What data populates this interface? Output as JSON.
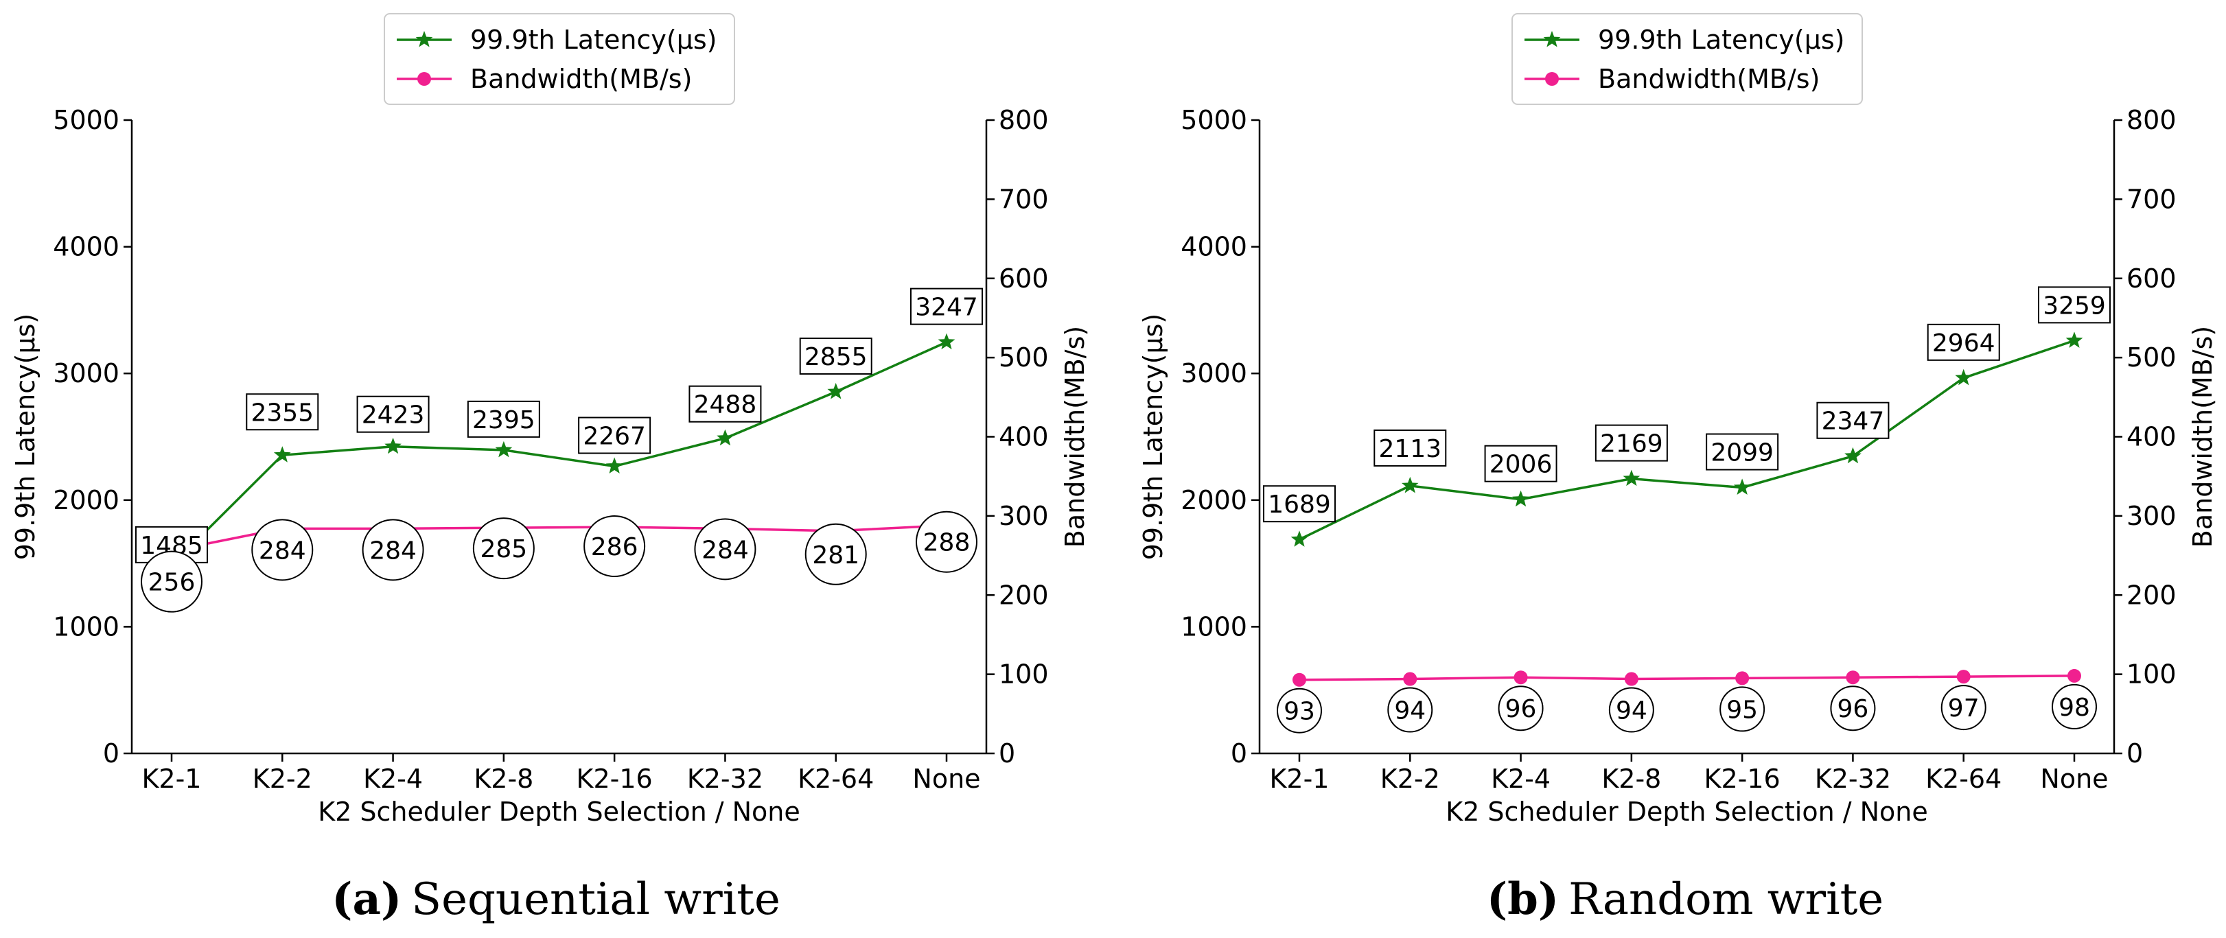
{
  "colors": {
    "latency": "#138013",
    "bandwidth": "#f0208f",
    "axis": "#000000"
  },
  "legend": {
    "latency_label": "99.9th Latency(µs)",
    "bandwidth_label": "Bandwidth(MB/s)"
  },
  "chart_data": [
    {
      "type": "line",
      "panel": "a",
      "caption_letter": "(a)",
      "caption_text": "Sequential write",
      "categories": [
        "K2-1",
        "K2-2",
        "K2-4",
        "K2-8",
        "K2-16",
        "K2-32",
        "K2-64",
        "None"
      ],
      "xlabel": "K2 Scheduler Depth Selection / None",
      "ylabel_left": "99.9th Latency(µs)",
      "ylabel_right": "Bandwidth(MB/s)",
      "ylim_left": [
        0,
        5000
      ],
      "yticks_left": [
        0,
        1000,
        2000,
        3000,
        4000,
        5000
      ],
      "ylim_right": [
        0,
        800
      ],
      "yticks_right": [
        0,
        100,
        200,
        300,
        400,
        500,
        600,
        700,
        800
      ],
      "series": [
        {
          "name": "99.9th Latency(µs)",
          "axis": "left",
          "marker": "star",
          "values": [
            1485,
            2355,
            2423,
            2395,
            2267,
            2488,
            2855,
            3247
          ]
        },
        {
          "name": "Bandwidth(MB/s)",
          "axis": "right",
          "marker": "circle",
          "values": [
            256,
            284,
            284,
            285,
            286,
            284,
            281,
            288
          ]
        }
      ],
      "legend_position": "top-left"
    },
    {
      "type": "line",
      "panel": "b",
      "caption_letter": "(b)",
      "caption_text": "Random write",
      "categories": [
        "K2-1",
        "K2-2",
        "K2-4",
        "K2-8",
        "K2-16",
        "K2-32",
        "K2-64",
        "None"
      ],
      "xlabel": "K2 Scheduler Depth Selection / None",
      "ylabel_left": "99.9th Latency(µs)",
      "ylabel_right": "Bandwidth(MB/s)",
      "ylim_left": [
        0,
        5000
      ],
      "yticks_left": [
        0,
        1000,
        2000,
        3000,
        4000,
        5000
      ],
      "ylim_right": [
        0,
        800
      ],
      "yticks_right": [
        0,
        100,
        200,
        300,
        400,
        500,
        600,
        700,
        800
      ],
      "series": [
        {
          "name": "99.9th Latency(µs)",
          "axis": "left",
          "marker": "star",
          "values": [
            1689,
            2113,
            2006,
            2169,
            2099,
            2347,
            2964,
            3259
          ]
        },
        {
          "name": "Bandwidth(MB/s)",
          "axis": "right",
          "marker": "circle",
          "values": [
            93,
            94,
            96,
            94,
            95,
            96,
            97,
            98
          ]
        }
      ],
      "legend_position": "top-left"
    }
  ]
}
